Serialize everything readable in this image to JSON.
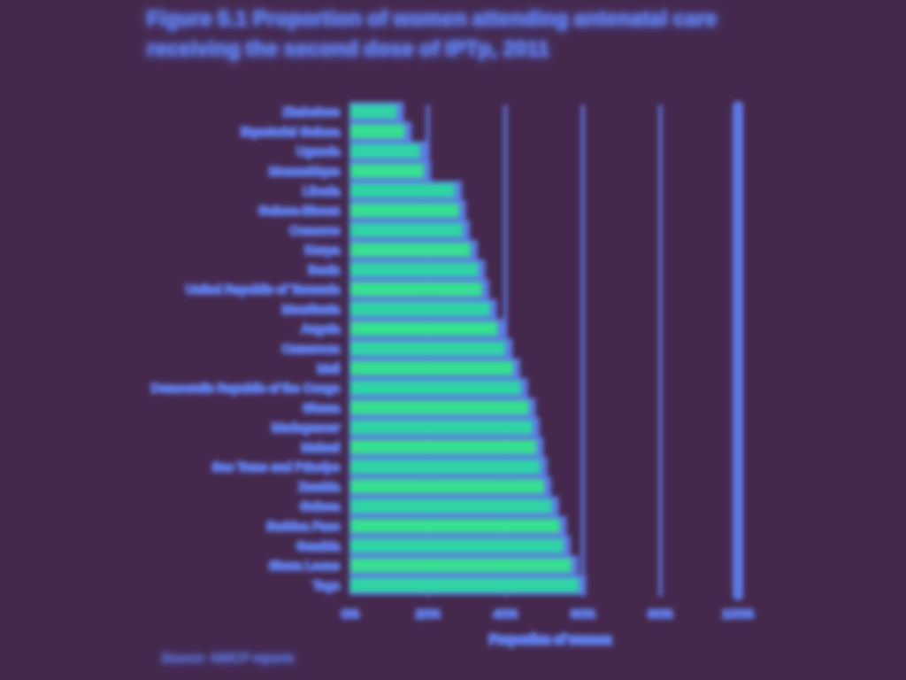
{
  "chart_data": {
    "type": "bar",
    "orientation": "horizontal",
    "title_lines": [
      "Figure 5.1 Proportion of women attending antenatal care",
      "receiving the second dose of IPTp, 2011"
    ],
    "categories": [
      "Zimbabwe",
      "Equatorial Guinea",
      "Uganda",
      "Mozambique",
      "Liberia",
      "Guinea-Bissau",
      "Comoros",
      "Kenya",
      "Benin",
      "United Republic of Tanzania",
      "Mauritania",
      "Angola",
      "Cameroon",
      "Mali",
      "Democratic Republic of the Congo",
      "Ghana",
      "Madagascar",
      "Malawi",
      "Sao Tome and Principe",
      "Zambia",
      "Guinea",
      "Burkina Faso",
      "Gambia",
      "Sierra Leone",
      "Togo"
    ],
    "values": [
      12,
      14,
      18,
      19,
      27,
      28,
      29,
      31,
      33,
      34,
      36,
      38,
      40,
      42,
      44,
      46,
      47,
      48,
      49,
      50,
      52,
      54,
      55,
      57,
      59
    ],
    "xlabel": "Proportion of women",
    "xlim": [
      0,
      100
    ],
    "tick_values": [
      0,
      20,
      40,
      60,
      80,
      100
    ],
    "tick_labels": [
      "0%",
      "20%",
      "40%",
      "60%",
      "80%",
      "100%"
    ],
    "grid": true,
    "colors": {
      "background": "#45294d",
      "text": "#5e7be7",
      "bar": "#2ed5a3",
      "bar_alt": "#35e08e",
      "gridline": "#5e7be7"
    }
  },
  "source": "Source: NMCP reports"
}
